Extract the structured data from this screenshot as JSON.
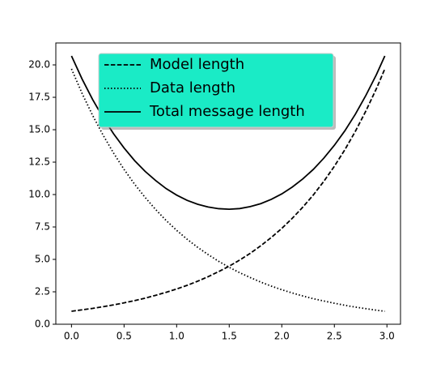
{
  "chart_data": {
    "type": "line",
    "x": [
      0,
      0.1,
      0.2,
      0.3,
      0.4,
      0.5,
      0.6,
      0.7,
      0.8,
      0.9,
      1.0,
      1.1,
      1.2,
      1.3,
      1.4,
      1.5,
      1.6,
      1.7,
      1.8,
      1.9,
      2.0,
      2.1,
      2.2,
      2.3,
      2.4,
      2.5,
      2.6,
      2.7,
      2.8,
      2.9,
      2.98
    ],
    "series": [
      {
        "name": "Model length",
        "color": "#000000",
        "dash": "dashed",
        "values": [
          1.0,
          1.11,
          1.22,
          1.35,
          1.49,
          1.65,
          1.82,
          2.01,
          2.23,
          2.46,
          2.72,
          3.0,
          3.32,
          3.67,
          4.06,
          4.48,
          4.95,
          5.47,
          6.05,
          6.69,
          7.39,
          8.17,
          9.03,
          9.97,
          11.02,
          12.18,
          13.46,
          14.88,
          16.45,
          18.17,
          19.69
        ]
      },
      {
        "name": "Data length",
        "color": "#000000",
        "dash": "dotted",
        "values": [
          19.69,
          17.81,
          16.12,
          14.59,
          13.2,
          11.94,
          10.8,
          9.78,
          8.85,
          8.0,
          7.24,
          6.55,
          5.93,
          5.37,
          4.85,
          4.39,
          3.97,
          3.6,
          3.25,
          2.94,
          2.66,
          2.41,
          2.18,
          1.97,
          1.79,
          1.62,
          1.46,
          1.32,
          1.2,
          1.08,
          1.0
        ]
      },
      {
        "name": "Total message length",
        "color": "#000000",
        "dash": "solid",
        "values": [
          20.69,
          18.92,
          17.34,
          15.94,
          14.69,
          13.59,
          12.62,
          11.79,
          11.08,
          10.46,
          9.96,
          9.55,
          9.25,
          9.04,
          8.91,
          8.87,
          8.92,
          9.07,
          9.3,
          9.63,
          10.05,
          10.58,
          11.21,
          11.94,
          12.81,
          13.8,
          14.92,
          16.2,
          17.65,
          19.25,
          20.69
        ]
      }
    ],
    "xlim": [
      -0.149,
      3.129
    ],
    "ylim": [
      0,
      21.69
    ],
    "xticks": [
      {
        "value": 0,
        "label": "0.0"
      },
      0.5,
      {
        "value": 1,
        "label": "1.0"
      },
      1.5,
      {
        "value": 2,
        "label": "2.0"
      },
      2.5,
      {
        "value": 3,
        "label": "3.0"
      }
    ],
    "yticks": [
      {
        "value": 0,
        "label": "0.0"
      },
      2.5,
      {
        "value": 5,
        "label": "5.0"
      },
      7.5,
      {
        "value": 10,
        "label": "10.0"
      },
      12.5,
      {
        "value": 15,
        "label": "15.0"
      },
      17.5,
      {
        "value": 20,
        "label": "20.0"
      }
    ],
    "legend": {
      "loc": "upper center",
      "facecolor": "#1aebc6",
      "shadow": true
    }
  }
}
